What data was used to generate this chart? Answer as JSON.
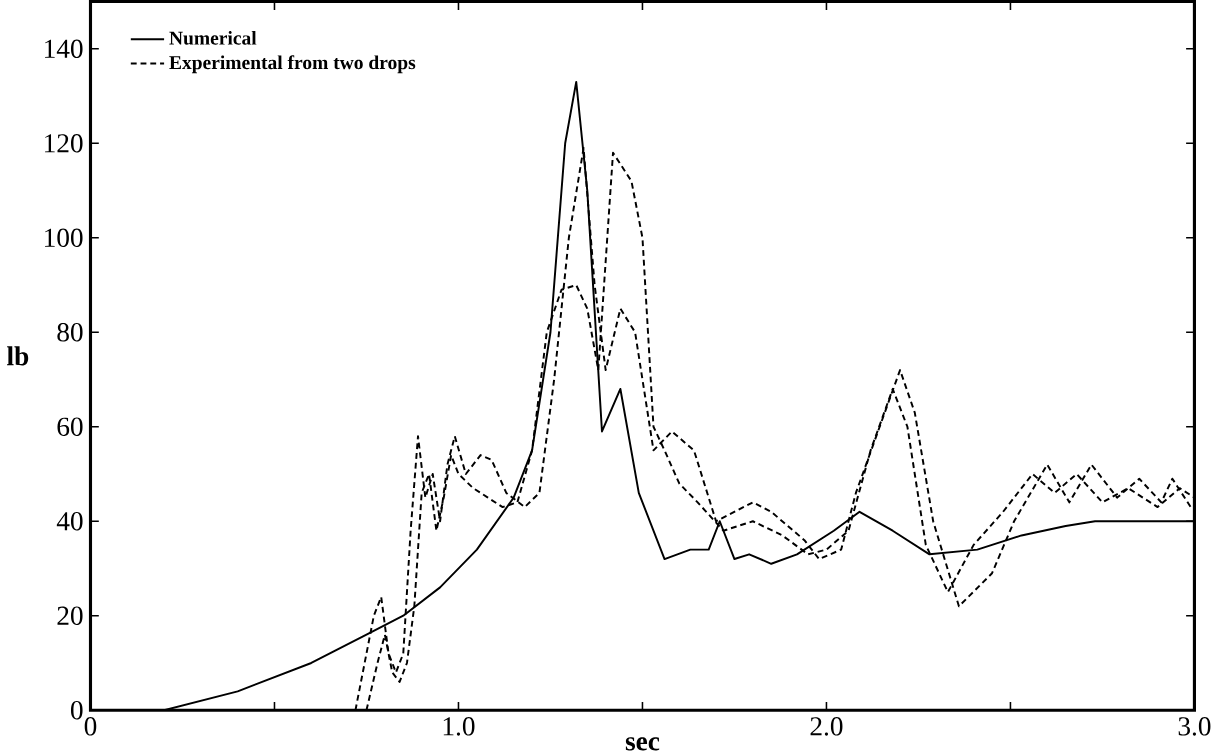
{
  "chart_data": {
    "type": "line",
    "xlabel": "sec",
    "ylabel": "lb",
    "xlim": [
      0,
      3
    ],
    "ylim": [
      0,
      150
    ],
    "xticks": [
      0,
      {
        "value": 0.5,
        "label": null
      },
      {
        "value": 1,
        "label": "1.0"
      },
      {
        "value": 1.5,
        "label": null
      },
      {
        "value": 2,
        "label": "2.0"
      },
      {
        "value": 2.5,
        "label": null
      },
      {
        "value": 3,
        "label": "3.0"
      }
    ],
    "yticks": [
      0,
      20,
      40,
      60,
      80,
      100,
      120,
      140
    ],
    "legend": "top left",
    "series": [
      {
        "name": "Numerical",
        "color": "#000000",
        "line_style": "solid",
        "x": [
          0.2,
          0.4,
          0.6,
          0.75,
          0.85,
          0.95,
          1.05,
          1.15,
          1.2,
          1.25,
          1.29,
          1.32,
          1.35,
          1.39,
          1.44,
          1.49,
          1.56,
          1.63,
          1.68,
          1.71,
          1.75,
          1.79,
          1.85,
          1.92,
          2.02,
          2.09,
          2.18,
          2.28,
          2.41,
          2.53,
          2.65,
          2.73,
          3.0
        ],
        "values": [
          0,
          4,
          10,
          16,
          20,
          26,
          34,
          45,
          55,
          80,
          120,
          133,
          110,
          59,
          68,
          46,
          32,
          34,
          34,
          40,
          32,
          33,
          31,
          33,
          38,
          42,
          38,
          33,
          34,
          37,
          39,
          40,
          40
        ]
      },
      {
        "name": "Experimental from two drops",
        "color": "#000000",
        "line_style": "dashed",
        "x": [
          0.72,
          0.75,
          0.77,
          0.79,
          0.81,
          0.83,
          0.85,
          0.87,
          0.89,
          0.91,
          0.93,
          0.95,
          0.97,
          0.99,
          1.02,
          1.06,
          1.09,
          1.13,
          1.18,
          1.22,
          1.26,
          1.3,
          1.34,
          1.37,
          1.4,
          1.44,
          1.48,
          1.53,
          1.58,
          1.64,
          1.7,
          1.8,
          1.85,
          1.94,
          1.98,
          2.04,
          2.08,
          2.2,
          2.24,
          2.29,
          2.36,
          2.45,
          2.51,
          2.6,
          2.66,
          2.72,
          2.79,
          2.85,
          2.91,
          2.94,
          2.99
        ],
        "values": [
          0,
          12,
          20,
          24,
          12,
          8,
          12,
          38,
          58,
          45,
          50,
          40,
          52,
          58,
          50,
          54,
          53,
          46,
          43,
          46,
          70,
          100,
          119,
          90,
          72,
          85,
          80,
          55,
          59,
          55,
          40,
          44,
          42,
          36,
          32,
          34,
          46,
          72,
          63,
          40,
          22,
          29,
          40,
          52,
          44,
          52,
          45,
          49,
          44,
          49,
          43
        ]
      },
      {
        "color": "#000000",
        "line_style": "dashed",
        "x": [
          0.75,
          0.78,
          0.8,
          0.82,
          0.84,
          0.86,
          0.88,
          0.9,
          0.92,
          0.94,
          0.96,
          0.98,
          1.0,
          1.04,
          1.08,
          1.12,
          1.16,
          1.2,
          1.24,
          1.28,
          1.32,
          1.35,
          1.38,
          1.42,
          1.47,
          1.5,
          1.53,
          1.56,
          1.6,
          1.65,
          1.72,
          1.8,
          1.88,
          1.95,
          2.0,
          2.06,
          2.12,
          2.18,
          2.22,
          2.27,
          2.33,
          2.4,
          2.48,
          2.56,
          2.62,
          2.68,
          2.75,
          2.82,
          2.9,
          2.96,
          3.0
        ],
        "values": [
          0,
          10,
          16,
          8,
          6,
          10,
          22,
          46,
          50,
          38,
          45,
          54,
          50,
          47,
          45,
          43,
          44,
          55,
          80,
          89,
          90,
          85,
          72,
          118,
          112,
          100,
          60,
          55,
          48,
          44,
          38,
          40,
          37,
          33,
          34,
          38,
          55,
          68,
          60,
          35,
          25,
          35,
          42,
          50,
          46,
          50,
          44,
          47,
          43,
          47,
          45
        ]
      }
    ]
  }
}
